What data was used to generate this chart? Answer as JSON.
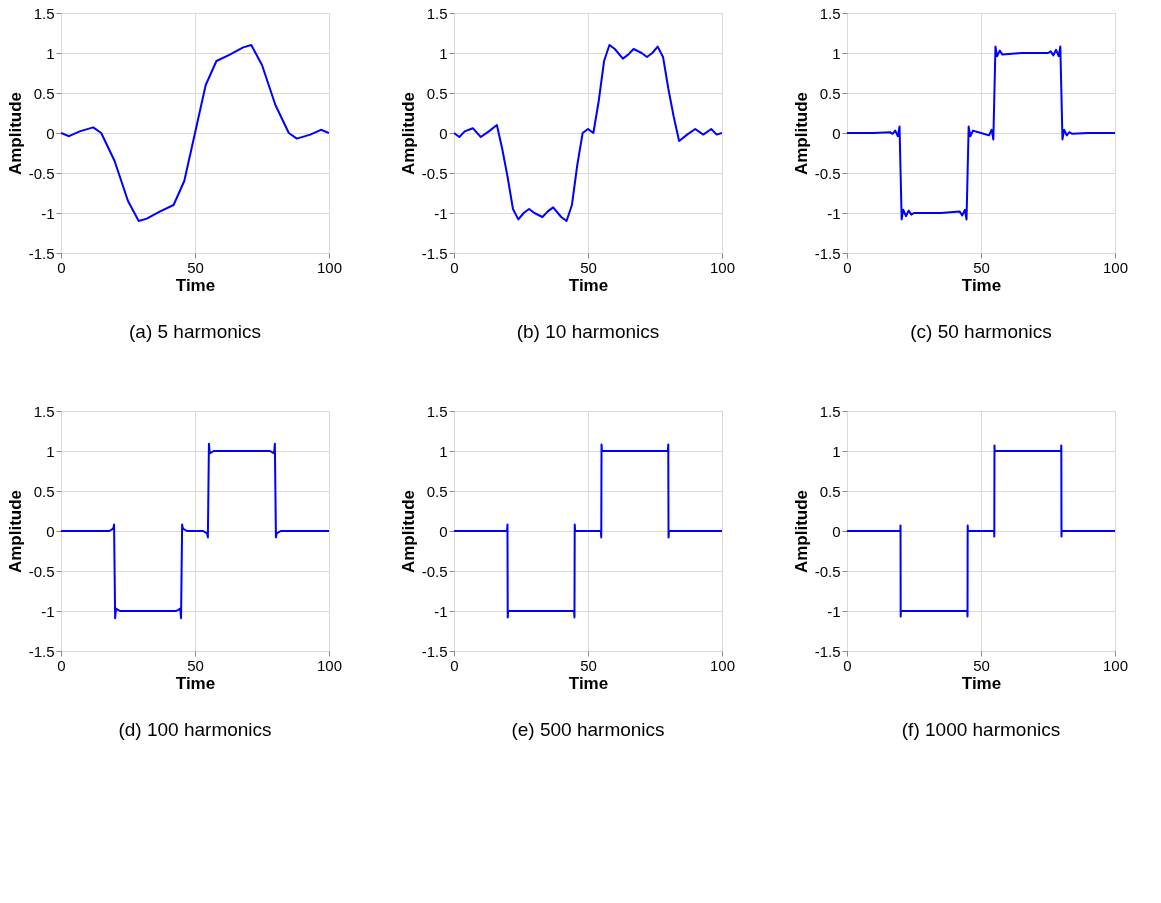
{
  "chart_data": [
    {
      "type": "line",
      "title": "(a) 5 harmonics",
      "xlabel": "Time",
      "ylabel": "Amplitude",
      "grid": true,
      "xlim": [
        0,
        100
      ],
      "ylim": [
        -1.5,
        1.5
      ],
      "xticks": [
        0,
        50,
        100
      ],
      "yticks": [
        -1.5,
        -1,
        -0.5,
        0,
        0.5,
        1,
        1.5
      ],
      "x": [
        0,
        3,
        7,
        12,
        15,
        20,
        25,
        29,
        32,
        37,
        42,
        46,
        50,
        54,
        58,
        63,
        68,
        71,
        75,
        80,
        85,
        88,
        93,
        97,
        100
      ],
      "series": [
        {
          "color": "#0000ff",
          "values": [
            0,
            -0.04,
            0.02,
            0.07,
            0.0,
            -0.35,
            -0.85,
            -1.1,
            -1.07,
            -0.98,
            -0.9,
            -0.6,
            0.0,
            0.6,
            0.9,
            0.98,
            1.07,
            1.1,
            0.85,
            0.35,
            0.0,
            -0.07,
            -0.02,
            0.04,
            0
          ]
        }
      ]
    },
    {
      "type": "line",
      "title": "(b) 10 harmonics",
      "xlabel": "Time",
      "ylabel": "Amplitude",
      "grid": true,
      "xlim": [
        0,
        100
      ],
      "ylim": [
        -1.5,
        1.5
      ],
      "xticks": [
        0,
        50,
        100
      ],
      "yticks": [
        -1.5,
        -1,
        -0.5,
        0,
        0.5,
        1,
        1.5
      ],
      "x": [
        0,
        2,
        4,
        7,
        10,
        13,
        16,
        18,
        20,
        22,
        24,
        26,
        28,
        30,
        33,
        35,
        37,
        40,
        42,
        44,
        46,
        48,
        50,
        52,
        54,
        56,
        58,
        60,
        63,
        65,
        67,
        70,
        72,
        74,
        76,
        78,
        80,
        82,
        84,
        87,
        90,
        93,
        96,
        98,
        100
      ],
      "series": [
        {
          "color": "#0000ff",
          "values": [
            0,
            -0.05,
            0.02,
            0.06,
            -0.05,
            0.02,
            0.1,
            -0.2,
            -0.55,
            -0.95,
            -1.08,
            -1.0,
            -0.95,
            -1.0,
            -1.05,
            -0.98,
            -0.93,
            -1.05,
            -1.1,
            -0.9,
            -0.4,
            0.0,
            0.05,
            0.0,
            0.4,
            0.9,
            1.1,
            1.05,
            0.93,
            0.98,
            1.05,
            1.0,
            0.95,
            1.0,
            1.08,
            0.95,
            0.55,
            0.2,
            -0.1,
            -0.02,
            0.05,
            -0.02,
            0.05,
            -0.02,
            0
          ]
        }
      ]
    },
    {
      "type": "line",
      "title": "(c) 50 harmonics",
      "xlabel": "Time",
      "ylabel": "Amplitude",
      "grid": true,
      "xlim": [
        0,
        100
      ],
      "ylim": [
        -1.5,
        1.5
      ],
      "xticks": [
        0,
        50,
        100
      ],
      "yticks": [
        -1.5,
        -1,
        -0.5,
        0,
        0.5,
        1,
        1.5
      ],
      "x": [
        0,
        10,
        16,
        17,
        18,
        19,
        19.6,
        20,
        20.4,
        21,
        22,
        23,
        24,
        25,
        35,
        42,
        43,
        44,
        44.6,
        45,
        45.4,
        46,
        47,
        50,
        53,
        54,
        54.6,
        55,
        55.4,
        56,
        57,
        58,
        65,
        75,
        76,
        77,
        78,
        79,
        79.6,
        80,
        80.4,
        81,
        82,
        83,
        84,
        90,
        100
      ],
      "series": [
        {
          "color": "#0000ff",
          "values": [
            0,
            0,
            0.01,
            -0.01,
            0.03,
            -0.04,
            0.08,
            -0.5,
            -1.08,
            -0.96,
            -1.04,
            -0.97,
            -1.02,
            -1.0,
            -1.0,
            -0.98,
            -1.03,
            -0.96,
            -1.08,
            -0.5,
            0.08,
            -0.04,
            0.03,
            0,
            -0.03,
            0.04,
            -0.08,
            0.5,
            1.08,
            0.96,
            1.03,
            0.98,
            1.0,
            1.0,
            1.02,
            0.97,
            1.04,
            0.96,
            1.08,
            0.5,
            -0.08,
            0.04,
            -0.03,
            0.01,
            -0.01,
            0,
            0
          ]
        }
      ]
    },
    {
      "type": "line",
      "title": "(d) 100 harmonics",
      "xlabel": "Time",
      "ylabel": "Amplitude",
      "grid": true,
      "xlim": [
        0,
        100
      ],
      "ylim": [
        -1.5,
        1.5
      ],
      "xticks": [
        0,
        50,
        100
      ],
      "yticks": [
        -1.5,
        -1,
        -0.5,
        0,
        0.5,
        1,
        1.5
      ],
      "x": [
        0,
        18,
        19.5,
        19.8,
        20,
        20.2,
        20.5,
        22,
        43,
        44.5,
        44.8,
        45,
        45.2,
        45.5,
        47,
        53,
        54.5,
        54.8,
        55,
        55.2,
        55.5,
        57,
        78,
        79.5,
        79.8,
        80,
        80.2,
        80.5,
        82,
        100
      ],
      "series": [
        {
          "color": "#0000ff",
          "values": [
            0,
            0,
            0.03,
            0.08,
            -0.5,
            -1.09,
            -0.97,
            -1.0,
            -1.0,
            -0.97,
            -1.09,
            -0.5,
            0.08,
            0.03,
            0,
            0,
            -0.03,
            -0.08,
            0.5,
            1.09,
            0.97,
            1.0,
            1.0,
            0.97,
            1.09,
            0.5,
            -0.08,
            -0.03,
            0,
            0
          ]
        }
      ]
    },
    {
      "type": "line",
      "title": "(e) 500 harmonics",
      "xlabel": "Time",
      "ylabel": "Amplitude",
      "grid": true,
      "xlim": [
        0,
        100
      ],
      "ylim": [
        -1.5,
        1.5
      ],
      "xticks": [
        0,
        50,
        100
      ],
      "yticks": [
        -1.5,
        -1,
        -0.5,
        0,
        0.5,
        1,
        1.5
      ],
      "x": [
        0,
        19.8,
        19.95,
        20,
        20.05,
        20.2,
        44.8,
        44.95,
        45,
        45.05,
        45.2,
        54.8,
        54.95,
        55,
        55.05,
        55.2,
        79.8,
        79.95,
        80,
        80.05,
        80.2,
        100
      ],
      "series": [
        {
          "color": "#0000ff",
          "values": [
            0,
            0,
            0.08,
            -0.5,
            -1.08,
            -1.0,
            -1.0,
            -1.08,
            -0.5,
            0.08,
            0,
            0,
            -0.08,
            0.5,
            1.08,
            1.0,
            1.0,
            1.08,
            0.5,
            -0.08,
            0,
            0
          ]
        }
      ]
    },
    {
      "type": "line",
      "title": "(f) 1000 harmonics",
      "xlabel": "Time",
      "ylabel": "Amplitude",
      "grid": true,
      "xlim": [
        0,
        100
      ],
      "ylim": [
        -1.5,
        1.5
      ],
      "xticks": [
        0,
        50,
        100
      ],
      "yticks": [
        -1.5,
        -1,
        -0.5,
        0,
        0.5,
        1,
        1.5
      ],
      "x": [
        0,
        19.9,
        19.97,
        20,
        20.03,
        20.1,
        44.9,
        44.97,
        45,
        45.03,
        45.1,
        54.9,
        54.97,
        55,
        55.03,
        55.1,
        79.9,
        79.97,
        80,
        80.03,
        80.1,
        100
      ],
      "series": [
        {
          "color": "#0000ff",
          "values": [
            0,
            0,
            0.07,
            -0.5,
            -1.07,
            -1.0,
            -1.0,
            -1.07,
            -0.5,
            0.07,
            0,
            0,
            -0.07,
            0.5,
            1.07,
            1.0,
            1.0,
            1.07,
            0.5,
            -0.07,
            0,
            0
          ]
        }
      ]
    }
  ]
}
